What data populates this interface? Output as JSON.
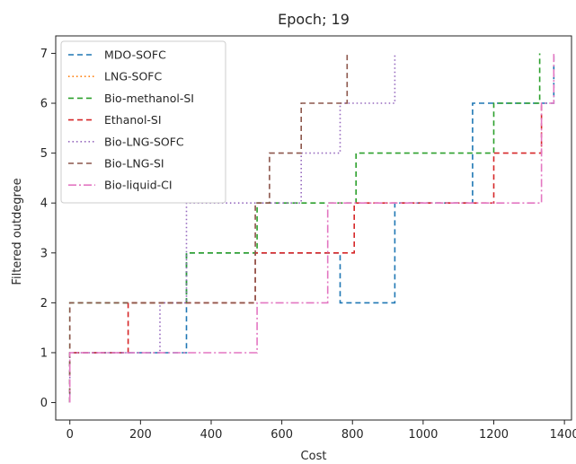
{
  "chart_data": {
    "type": "line",
    "title": "Epoch; 19",
    "xlabel": "Cost",
    "ylabel": "Filtered outdegree",
    "xlim": [
      -40,
      1420
    ],
    "ylim": [
      -0.35,
      7.35
    ],
    "xticks": [
      0,
      200,
      400,
      600,
      800,
      1000,
      1200,
      1400
    ],
    "yticks": [
      0,
      1,
      2,
      3,
      4,
      5,
      6,
      7
    ],
    "legend_position": "top-left",
    "grid": false,
    "series": [
      {
        "name": "MDO-SOFC",
        "color": "#1f77b4",
        "dash": "6,4",
        "x": [
          0,
          0,
          330,
          330,
          765,
          765,
          920,
          920,
          1140,
          1140,
          1370,
          1370
        ],
        "y": [
          0,
          1,
          1,
          3,
          3,
          2,
          2,
          4,
          4,
          6,
          6,
          7
        ]
      },
      {
        "name": "LNG-SOFC",
        "color": "#ff7f0e",
        "dash": "1.5,3",
        "x": [],
        "y": []
      },
      {
        "name": "Bio-methanol-SI",
        "color": "#2ca02c",
        "dash": "6,4",
        "x": [
          0,
          0,
          330,
          330,
          530,
          530,
          810,
          810,
          1200,
          1200,
          1330,
          1330
        ],
        "y": [
          0,
          2,
          2,
          3,
          3,
          4,
          4,
          5,
          5,
          6,
          6,
          7
        ]
      },
      {
        "name": "Ethanol-SI",
        "color": "#d62728",
        "dash": "6,4",
        "x": [
          0,
          0,
          165,
          165,
          525,
          525,
          805,
          805,
          1200,
          1200,
          1335,
          1335
        ],
        "y": [
          0,
          1,
          1,
          2,
          2,
          3,
          3,
          4,
          4,
          5,
          5,
          6
        ]
      },
      {
        "name": "Bio-LNG-SOFC",
        "color": "#9467bd",
        "dash": "1.5,3",
        "x": [
          0,
          0,
          255,
          255,
          330,
          330,
          655,
          655,
          765,
          765,
          920,
          920
        ],
        "y": [
          0,
          1,
          1,
          2,
          2,
          4,
          4,
          5,
          5,
          6,
          6,
          7
        ]
      },
      {
        "name": "Bio-LNG-SI",
        "color": "#8c564b",
        "dash": "6,4",
        "x": [
          0,
          0,
          525,
          525,
          565,
          565,
          655,
          655,
          785,
          785
        ],
        "y": [
          0,
          2,
          2,
          4,
          4,
          5,
          5,
          6,
          6,
          7
        ]
      },
      {
        "name": "Bio-liquid-CI",
        "color": "#e377c2",
        "dash": "9,3,2,3",
        "x": [
          0,
          0,
          530,
          530,
          730,
          730,
          1335,
          1335,
          1370,
          1370
        ],
        "y": [
          0,
          1,
          1,
          2,
          2,
          4,
          4,
          6,
          6,
          7
        ]
      }
    ]
  }
}
